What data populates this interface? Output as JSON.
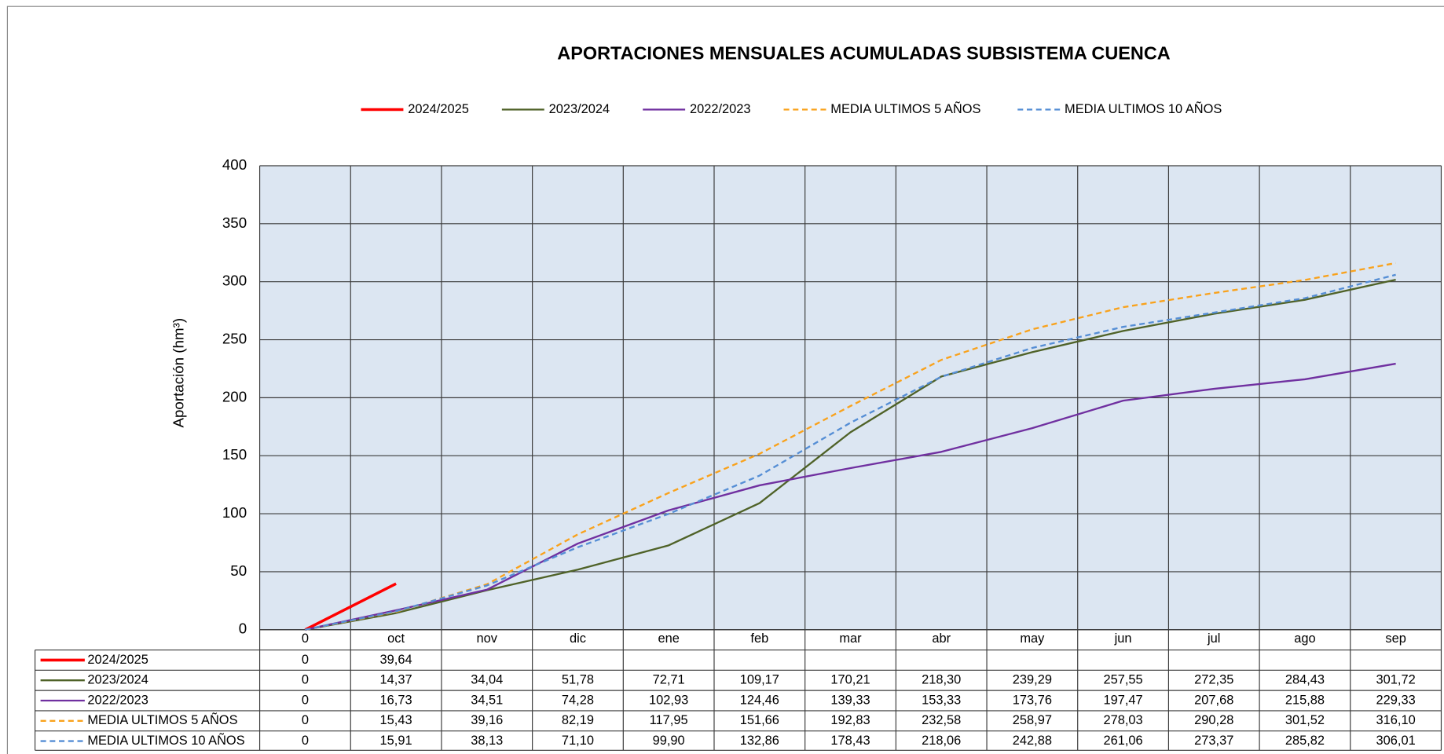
{
  "chart_data": {
    "type": "line",
    "title": "APORTACIONES  MENSUALES ACUMULADAS  SUBSISTEMA CUENCA",
    "y_label": "Aportación (hm³)",
    "categories": [
      "0",
      "oct",
      "nov",
      "dic",
      "ene",
      "feb",
      "mar",
      "abr",
      "may",
      "jun",
      "jul",
      "ago",
      "sep"
    ],
    "ylim": [
      0,
      400
    ],
    "yticks": [
      0,
      50,
      100,
      150,
      200,
      250,
      300,
      350,
      400
    ],
    "grid": true,
    "series": [
      {
        "name": "2024/2025",
        "color": "#ff0000",
        "dashed": false,
        "width": 3,
        "values": [
          0,
          39.64,
          null,
          null,
          null,
          null,
          null,
          null,
          null,
          null,
          null,
          null,
          null
        ],
        "value_labels": [
          "0",
          "39,64",
          null,
          null,
          null,
          null,
          null,
          null,
          null,
          null,
          null,
          null,
          null
        ]
      },
      {
        "name": "2023/2024",
        "color": "#4f6228",
        "dashed": false,
        "width": 2,
        "values": [
          0,
          14.37,
          34.04,
          51.78,
          72.71,
          109.17,
          170.21,
          218.3,
          239.29,
          257.55,
          272.35,
          284.43,
          301.72
        ],
        "value_labels": [
          "0",
          "14,37",
          "34,04",
          "51,78",
          "72,71",
          "109,17",
          "170,21",
          "218,30",
          "239,29",
          "257,55",
          "272,35",
          "284,43",
          "301,72"
        ]
      },
      {
        "name": "2022/2023",
        "color": "#7030a0",
        "dashed": false,
        "width": 2,
        "values": [
          0,
          16.73,
          34.51,
          74.28,
          102.93,
          124.46,
          139.33,
          153.33,
          173.76,
          197.47,
          207.68,
          215.88,
          229.33
        ],
        "value_labels": [
          "0",
          "16,73",
          "34,51",
          "74,28",
          "102,93",
          "124,46",
          "139,33",
          "153,33",
          "173,76",
          "197,47",
          "207,68",
          "215,88",
          "229,33"
        ]
      },
      {
        "name": "MEDIA ULTIMOS 5 AÑOS",
        "color": "#f9a21c",
        "dashed": true,
        "width": 2,
        "values": [
          0,
          15.43,
          39.16,
          82.19,
          117.95,
          151.66,
          192.83,
          232.58,
          258.97,
          278.03,
          290.28,
          301.52,
          316.1
        ],
        "value_labels": [
          "0",
          "15,43",
          "39,16",
          "82,19",
          "117,95",
          "151,66",
          "192,83",
          "232,58",
          "258,97",
          "278,03",
          "290,28",
          "301,52",
          "316,10"
        ]
      },
      {
        "name": "MEDIA ULTIMOS 10 AÑOS",
        "color": "#558ed5",
        "dashed": true,
        "width": 2,
        "values": [
          0,
          15.91,
          38.13,
          71.1,
          99.9,
          132.86,
          178.43,
          218.06,
          242.88,
          261.06,
          273.37,
          285.82,
          306.01
        ],
        "value_labels": [
          "0",
          "15,91",
          "38,13",
          "71,10",
          "99,90",
          "132,86",
          "178,43",
          "218,06",
          "242,88",
          "261,06",
          "273,37",
          "285,82",
          "306,01"
        ]
      }
    ]
  }
}
